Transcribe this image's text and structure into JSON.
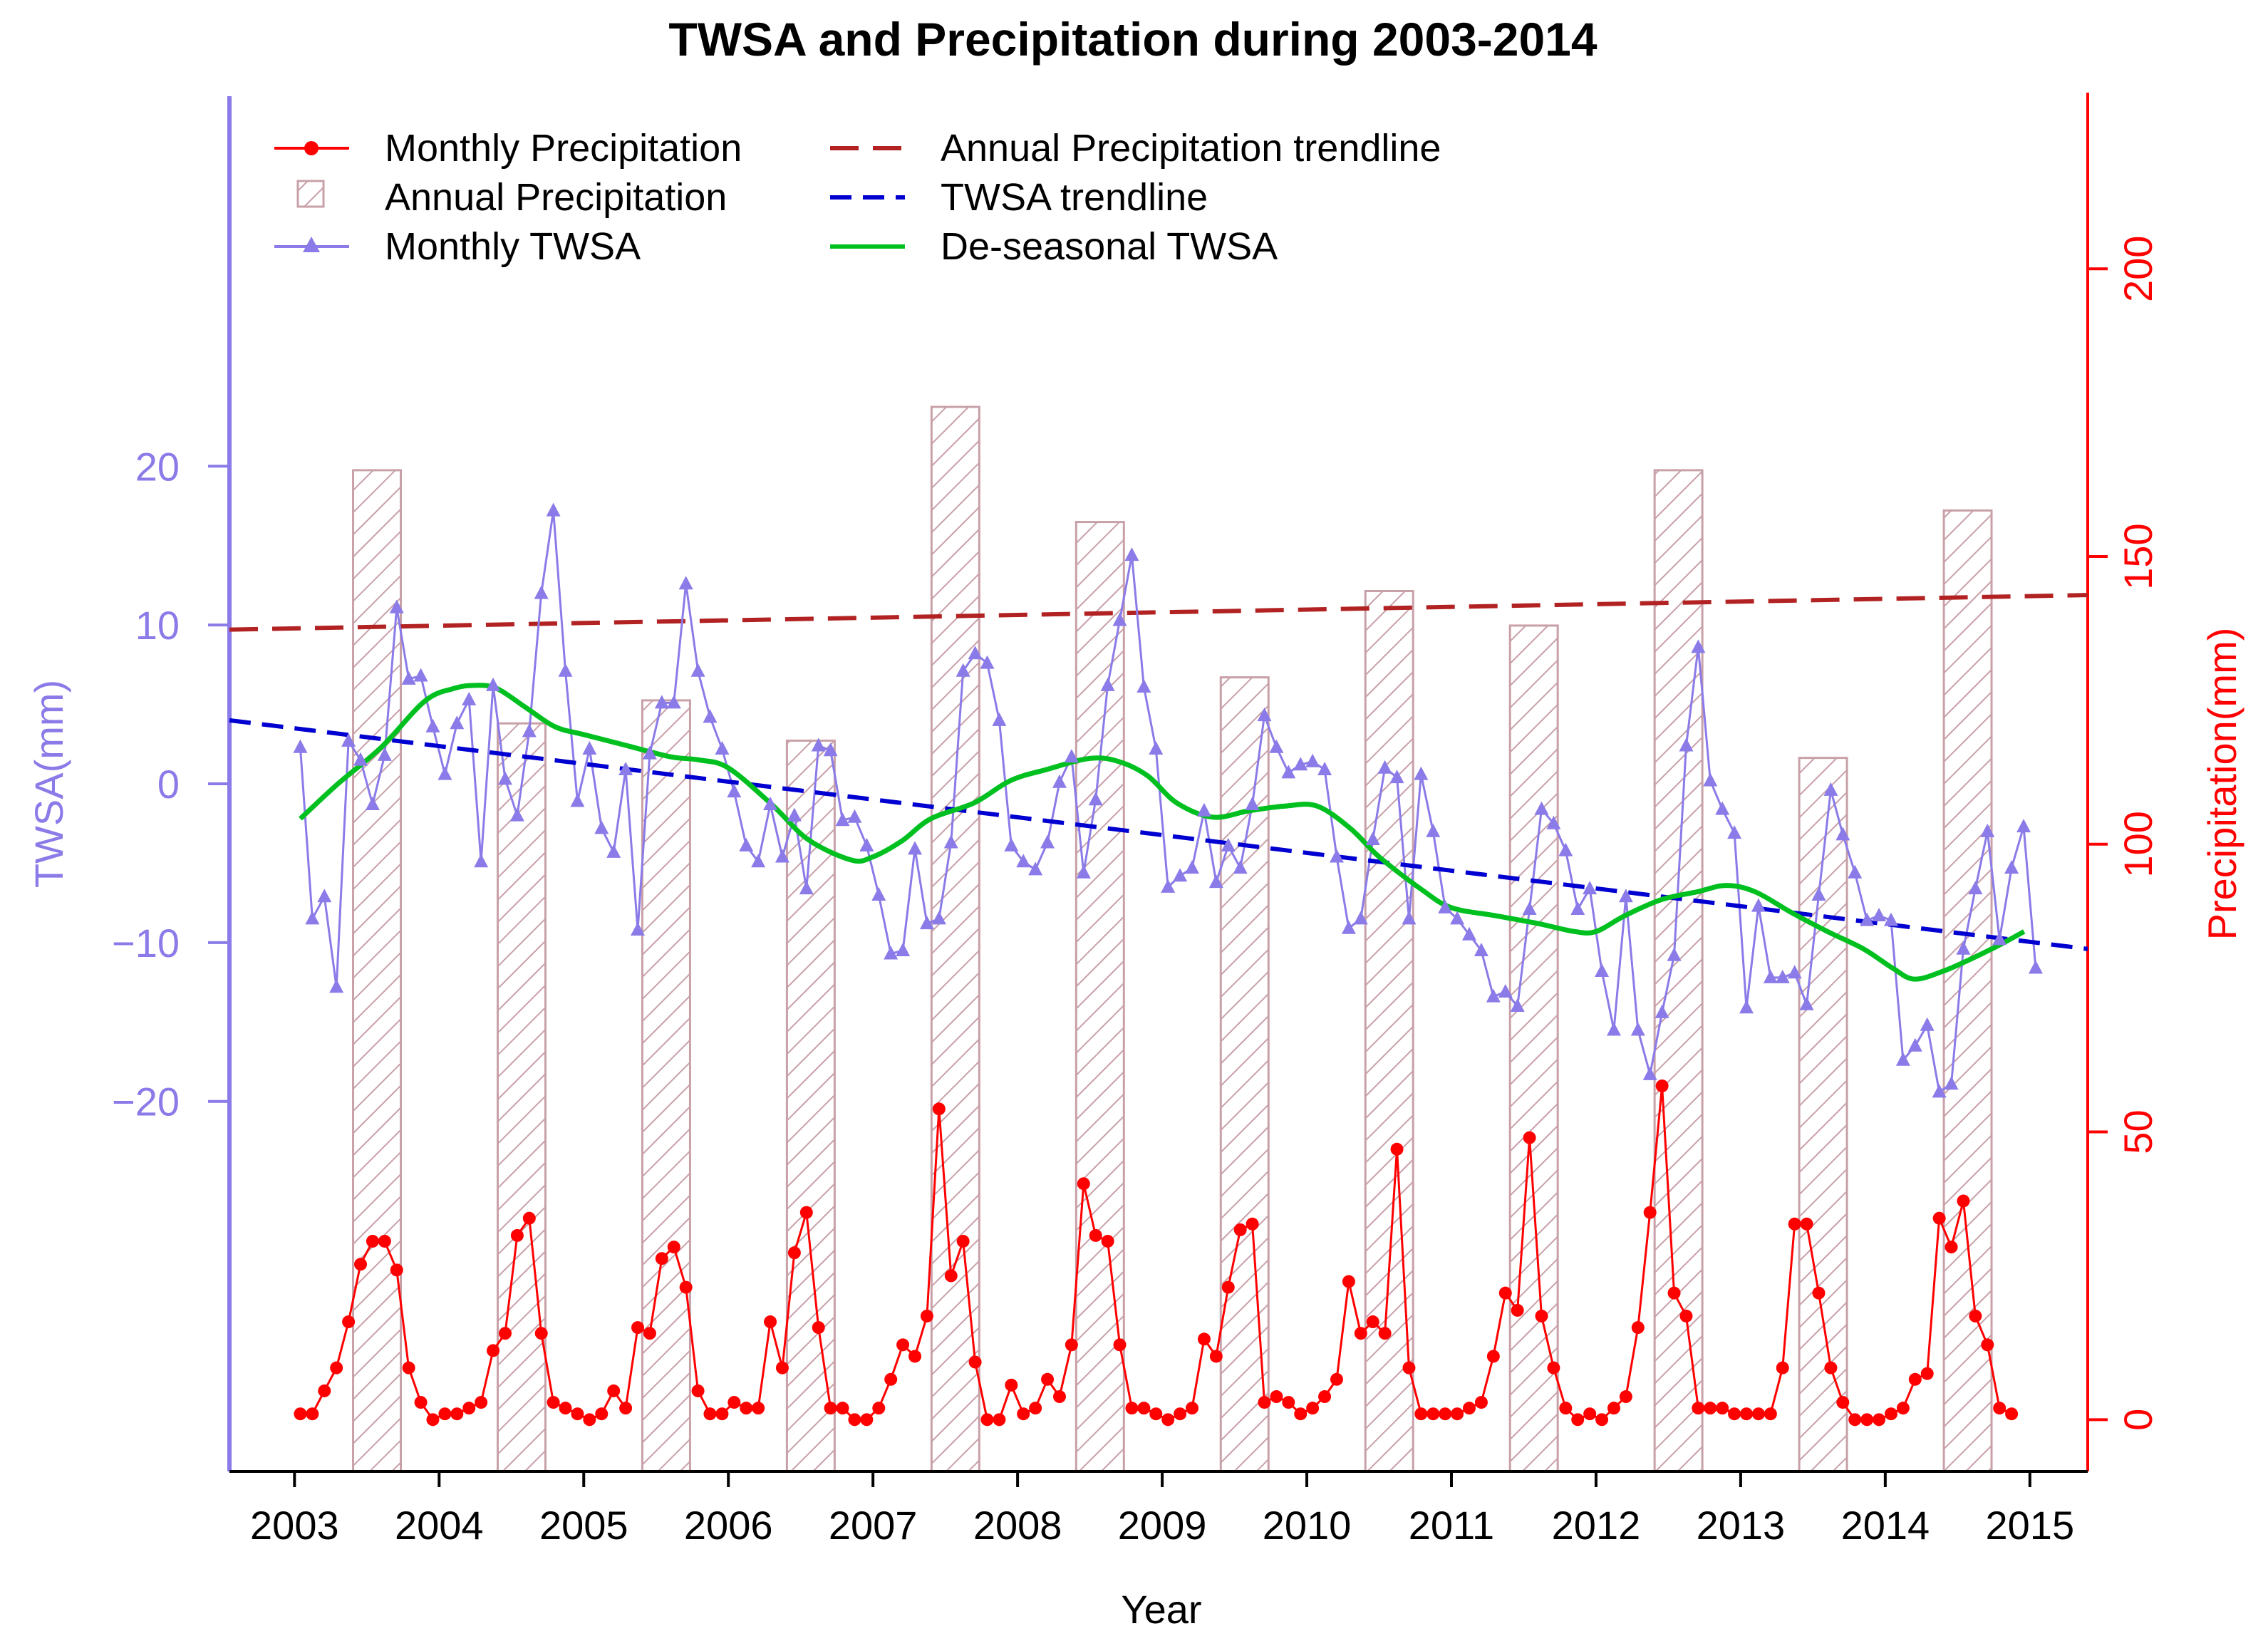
{
  "chart_data": {
    "type": "line+bar",
    "title": "TWSA and Precipitation during 2003-2014",
    "xlabel": "Year",
    "ylabel_left": "TWSA(mm)",
    "ylabel_right": "Precipitation(mm)",
    "x_ticks": [
      "2003",
      "2004",
      "2005",
      "2006",
      "2007",
      "2008",
      "2009",
      "2010",
      "2011",
      "2012",
      "2013",
      "2014",
      "2015"
    ],
    "left_ticks": [
      20,
      10,
      0,
      -10,
      -20
    ],
    "left_tick_labels": [
      "20",
      "10",
      "0",
      "−10",
      "−20"
    ],
    "right_ticks": [
      0,
      50,
      100,
      150,
      200
    ],
    "right_tick_labels": [
      "0",
      "50",
      "100",
      "150",
      "200"
    ],
    "xlim": [
      2002.55,
      2015.4
    ],
    "ylim_left": [
      -43.3,
      43.3
    ],
    "ylim_right": [
      -9,
      230
    ],
    "legend": [
      {
        "label": "Monthly Precipitation",
        "style": "line-dot",
        "color": "#ff0000"
      },
      {
        "label": "Annual  Precipitation",
        "style": "hatch",
        "color": "#c8a0a8"
      },
      {
        "label": "Monthly TWSA",
        "style": "line-triangle",
        "color": "#8a7be8"
      },
      {
        "label": "Annual Precipitation trendline",
        "style": "dashed",
        "color": "#b22222"
      },
      {
        "label": "TWSA trendline",
        "style": "dashed",
        "color": "#0000d0"
      },
      {
        "label": "De-seasonal TWSA",
        "style": "solid",
        "color": "#00c020"
      }
    ],
    "colors": {
      "twsa": "#8a7be8",
      "precip": "#ff0000",
      "bar_hatch": "#c8a0a8",
      "precip_trend": "#b22222",
      "twsa_trend": "#0000d0",
      "deseasonal": "#00c020"
    },
    "annual_precipitation": {
      "years": [
        2003,
        2004,
        2005,
        2006,
        2007,
        2008,
        2009,
        2010,
        2011,
        2012,
        2013,
        2014
      ],
      "values": [
        165,
        121,
        125,
        118,
        176,
        156,
        129,
        144,
        138,
        165,
        115,
        158
      ]
    },
    "precip_trendline": {
      "x": [
        2002.55,
        2015.4
      ],
      "y": [
        137.3,
        143.3
      ]
    },
    "twsa_trendline": {
      "x": [
        2002.55,
        2015.4
      ],
      "y": [
        4.0,
        -10.4
      ]
    },
    "monthly_twsa": {
      "start": 2003.04,
      "step": 0.0833333,
      "values": [
        2.3,
        -8.5,
        -7.1,
        -12.8,
        2.7,
        1.5,
        -1.3,
        1.8,
        11.1,
        6.6,
        6.8,
        3.6,
        0.6,
        3.8,
        5.3,
        -4.9,
        6.2,
        0.3,
        -2.0,
        3.3,
        12.0,
        17.2,
        7.1,
        -1.1,
        2.2,
        -2.8,
        -4.3,
        0.9,
        -9.2,
        1.9,
        5.1,
        5.1,
        12.6,
        7.1,
        4.2,
        2.2,
        -0.5,
        -3.9,
        -4.9,
        -1.3,
        -4.6,
        -2.0,
        -6.6,
        2.4,
        2.1,
        -2.3,
        -2.1,
        -3.9,
        -7.0,
        -10.7,
        -10.5,
        -4.1,
        -8.8,
        -8.5,
        -3.7,
        7.1,
        8.2,
        7.6,
        4.0,
        -3.9,
        -4.9,
        -5.4,
        -3.7,
        0.1,
        1.7,
        -5.6,
        -1.0,
        6.2,
        10.3,
        14.4,
        6.1,
        2.2,
        -6.5,
        -5.8,
        -5.3,
        -1.7,
        -6.2,
        -3.9,
        -5.3,
        -1.3,
        4.3,
        2.3,
        0.7,
        1.2,
        1.4,
        0.9,
        -4.6,
        -9.1,
        -8.5,
        -3.5,
        1.0,
        0.4,
        -8.5,
        0.6,
        -3.0,
        -7.8,
        -8.5,
        -9.5,
        -10.5,
        -13.4,
        -13.1,
        -14.0,
        -7.9,
        -1.6,
        -2.5,
        -4.2,
        -7.9,
        -6.6,
        -11.8,
        -15.5,
        -7.1,
        -15.5,
        -18.3,
        -14.4,
        -10.8,
        2.4,
        8.6,
        0.2,
        -1.6,
        -3.1,
        -14.1,
        -7.7,
        -12.2,
        -12.2,
        -11.9,
        -13.9,
        -7.0,
        -0.4,
        -3.2,
        -5.6,
        -8.6,
        -8.3,
        -8.6,
        -17.4,
        -16.5,
        -15.2,
        -19.4,
        -18.9,
        -10.4,
        -6.6,
        -3.0,
        -9.8,
        -5.3,
        -2.7,
        -11.6
      ]
    },
    "deseasonal_twsa": {
      "x": [
        2003.04,
        2003.3,
        2003.6,
        2003.9,
        2004.1,
        2004.25,
        2004.4,
        2004.6,
        2004.8,
        2005.0,
        2005.3,
        2005.6,
        2005.8,
        2006.0,
        2006.3,
        2006.55,
        2006.85,
        2007.0,
        2007.2,
        2007.4,
        2007.7,
        2007.95,
        2008.2,
        2008.5,
        2008.7,
        2008.9,
        2009.1,
        2009.35,
        2009.6,
        2009.85,
        2010.07,
        2010.3,
        2010.5,
        2010.8,
        2011.0,
        2011.3,
        2011.6,
        2011.85,
        2012.0,
        2012.2,
        2012.45,
        2012.7,
        2012.9,
        2013.1,
        2013.35,
        2013.6,
        2013.85,
        2014.05,
        2014.2,
        2014.4,
        2014.6,
        2014.8,
        2014.96
      ],
      "y": [
        -2.2,
        0.0,
        2.3,
        5.2,
        6.0,
        6.2,
        6.0,
        4.8,
        3.6,
        3.1,
        2.4,
        1.7,
        1.5,
        1.0,
        -1.3,
        -3.5,
        -4.8,
        -4.6,
        -3.6,
        -2.2,
        -1.2,
        0.2,
        0.9,
        1.6,
        1.4,
        0.5,
        -1.2,
        -2.1,
        -1.7,
        -1.4,
        -1.4,
        -2.8,
        -4.6,
        -6.7,
        -7.8,
        -8.3,
        -8.8,
        -9.3,
        -9.3,
        -8.3,
        -7.3,
        -6.8,
        -6.4,
        -6.8,
        -8.1,
        -9.3,
        -10.4,
        -11.6,
        -12.3,
        -11.8,
        -11.0,
        -10.1,
        -9.3
      ]
    },
    "monthly_precipitation": {
      "start": 2003.04,
      "step": 0.0833333,
      "values": [
        1,
        1,
        5,
        9,
        17,
        27,
        31,
        31,
        26,
        9,
        3,
        0,
        1,
        1,
        2,
        3,
        12,
        15,
        32,
        35,
        15,
        3,
        2,
        1,
        0,
        1,
        5,
        2,
        16,
        15,
        28,
        30,
        23,
        5,
        1,
        1,
        3,
        2,
        2,
        17,
        9,
        29,
        36,
        16,
        2,
        2,
        0,
        0,
        2,
        7,
        13,
        11,
        18,
        54,
        25,
        31,
        10,
        0,
        0,
        6,
        1,
        2,
        7,
        4,
        13,
        41,
        32,
        31,
        13,
        2,
        2,
        1,
        0,
        1,
        2,
        14,
        11,
        23,
        33,
        34,
        3,
        4,
        3,
        1,
        2,
        4,
        7,
        24,
        15,
        17,
        15,
        47,
        9,
        1,
        1,
        1,
        1,
        2,
        3,
        11,
        22,
        19,
        49,
        18,
        9,
        2,
        0,
        1,
        0,
        2,
        4,
        16,
        36,
        58,
        22,
        18,
        2,
        2,
        2,
        1,
        1,
        1,
        1,
        9,
        34,
        34,
        22,
        9,
        3,
        0,
        0,
        0,
        1,
        2,
        7,
        8,
        35,
        30,
        38,
        18,
        13,
        2,
        1
      ]
    }
  }
}
